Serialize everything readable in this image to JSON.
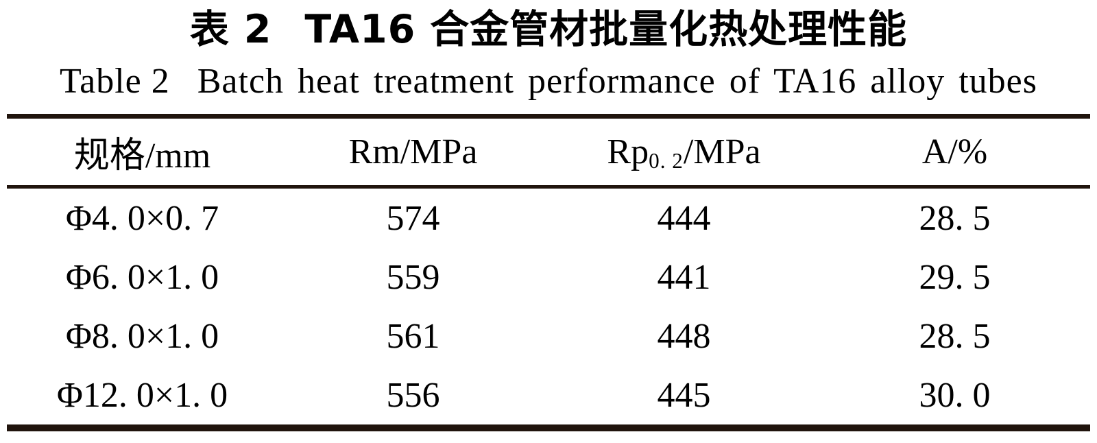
{
  "titles": {
    "chinese_label": "表 2",
    "chinese_text": "TA16 合金管材批量化热处理性能",
    "english_label": "Table 2",
    "english_text": "Batch heat treatment performance of TA16 alloy tubes"
  },
  "table": {
    "header_spec": "规格/mm",
    "header_rm": "Rm/MPa",
    "header_rp": {
      "base": "Rp",
      "subscript": "0. 2",
      "rest": "/MPa"
    },
    "header_a": "A/%",
    "rows": [
      {
        "spec": "Φ4. 0×0. 7",
        "rm": "574",
        "rp02": "444",
        "a": "28. 5"
      },
      {
        "spec": "Φ6. 0×1. 0",
        "rm": "559",
        "rp02": "441",
        "a": "29. 5"
      },
      {
        "spec": "Φ8. 0×1. 0",
        "rm": "561",
        "rp02": "448",
        "a": "28. 5"
      },
      {
        "spec": "Φ12. 0×1. 0",
        "rm": "556",
        "rp02": "445",
        "a": "30. 0"
      }
    ]
  },
  "colors": {
    "rule": "#20140d",
    "text": "#000000",
    "background": "#ffffff"
  }
}
